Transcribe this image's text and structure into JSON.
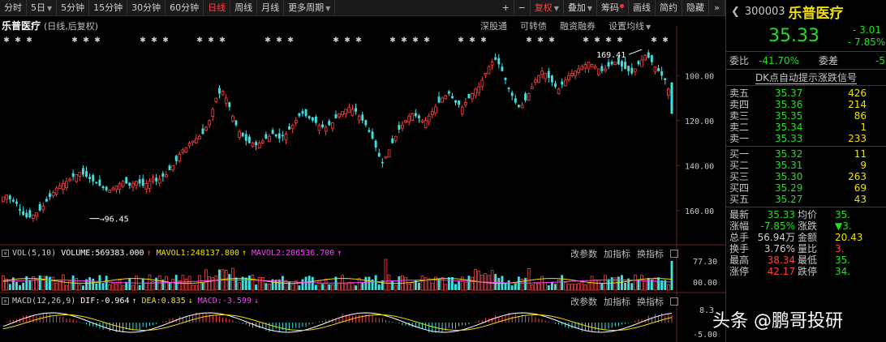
{
  "toolbar": {
    "items": [
      {
        "label": "分时",
        "active": false
      },
      {
        "label": "5日",
        "active": false,
        "dropdown": true
      },
      {
        "label": "5分钟",
        "active": false
      },
      {
        "label": "15分钟",
        "active": false
      },
      {
        "label": "30分钟",
        "active": false
      },
      {
        "label": "60分钟",
        "active": false
      },
      {
        "label": "日线",
        "active": true
      },
      {
        "label": "周线",
        "active": false
      },
      {
        "label": "月线",
        "active": false
      },
      {
        "label": "更多周期",
        "active": false,
        "dropdown": true
      }
    ],
    "plus": "+",
    "minus": "−",
    "fuquan": "复权",
    "overlay": "叠加",
    "chouma": "筹码",
    "draw": "画线",
    "simple": "简约",
    "hide": "隐藏",
    "nav": "»"
  },
  "stock": {
    "name": "乐普医疗",
    "mode": "(日线,后复权)",
    "code": "300003"
  },
  "chart_menu": [
    "深股通",
    "可转债",
    "融资融券",
    "设置均线"
  ],
  "y_axis_labels": [
    "160.00",
    "140.00",
    "120.00",
    "100.00"
  ],
  "annotations": {
    "high": "169.41",
    "low": "96.45"
  },
  "star_marks": "✱",
  "volume_panel": {
    "name": "VOL(5,10)",
    "volume": "VOLUME:569383.000",
    "mavol1": "MAVOL1:248137.800",
    "mavol2": "MAVOL2:206536.700",
    "buttons": [
      "改参数",
      "加指标",
      "换指标"
    ],
    "axis": [
      "77.30",
      "00.00"
    ]
  },
  "macd_panel": {
    "name": "MACD(12,26,9)",
    "dif": "DIF:-0.964",
    "dea": "DEA:0.835",
    "macd": "MACD:-3.599",
    "buttons": [
      "改参数",
      "加指标",
      "换指标"
    ],
    "axis": [
      "8.3",
      "-5.00"
    ]
  },
  "quote": {
    "price": "35.33",
    "change": "- 3.01",
    "pct": "- 7.85%",
    "weibi_label": "委比",
    "weibi": "-41.70%",
    "weicha_label": "委差",
    "weicha": "-5",
    "dk": "DK点自动提示涨跌信号",
    "sells": [
      {
        "label": "卖五",
        "price": "35.37",
        "vol": "426"
      },
      {
        "label": "卖四",
        "price": "35.36",
        "vol": "214"
      },
      {
        "label": "卖三",
        "price": "35.35",
        "vol": "86"
      },
      {
        "label": "卖二",
        "price": "35.34",
        "vol": "1"
      },
      {
        "label": "卖一",
        "price": "35.33",
        "vol": "233"
      }
    ],
    "buys": [
      {
        "label": "买一",
        "price": "35.32",
        "vol": "11"
      },
      {
        "label": "买二",
        "price": "35.31",
        "vol": "9"
      },
      {
        "label": "买三",
        "price": "35.30",
        "vol": "263"
      },
      {
        "label": "买四",
        "price": "35.29",
        "vol": "69"
      },
      {
        "label": "买五",
        "price": "35.27",
        "vol": "43"
      }
    ],
    "stats": [
      {
        "l1": "最新",
        "v1": "35.33",
        "c1": "g",
        "l2": "均价",
        "v2": "35.",
        "c2": "g"
      },
      {
        "l1": "涨幅",
        "v1": "-7.85%",
        "c1": "g",
        "l2": "涨跌",
        "v2": "▼3.",
        "c2": "g"
      },
      {
        "l1": "总手",
        "v1": "56.94万",
        "c1": "w",
        "l2": "金额",
        "v2": "20.43",
        "c2": "y"
      },
      {
        "l1": "换手",
        "v1": "3.76%",
        "c1": "w",
        "l2": "量比",
        "v2": "3.",
        "c2": "r"
      },
      {
        "l1": "最高",
        "v1": "38.34",
        "c1": "r",
        "l2": "最低",
        "v2": "35.",
        "c2": "g"
      },
      {
        "l1": "涨停",
        "v1": "42.17",
        "c1": "r",
        "l2": "跌停",
        "v2": "34.",
        "c2": "g"
      }
    ]
  },
  "watermark": "头条 @鹏哥投研",
  "chart_data": {
    "type": "candlestick",
    "y_ticks": [
      100,
      120,
      140,
      160
    ],
    "ylim": [
      92,
      172
    ],
    "notable": {
      "high": 169.41,
      "low": 96.45
    },
    "close_path": [
      106,
      107,
      105,
      104,
      103,
      100,
      98,
      97,
      97,
      98,
      99,
      100,
      102,
      104,
      106,
      108,
      110,
      111,
      112,
      113,
      114,
      115,
      116,
      117,
      116,
      115,
      114,
      113,
      112,
      111,
      110,
      109,
      109,
      110,
      111,
      112,
      113,
      112,
      111,
      112,
      113,
      112,
      111,
      112,
      113,
      114,
      113,
      114,
      115,
      116,
      118,
      120,
      122,
      125,
      127,
      128,
      130,
      131,
      132,
      133,
      134,
      137,
      140,
      145,
      150,
      152,
      153,
      150,
      146,
      142,
      138,
      135,
      133,
      131,
      130,
      130,
      129,
      130,
      131,
      132,
      133,
      134,
      133,
      132,
      133,
      134,
      136,
      138,
      140,
      142,
      143,
      142,
      141,
      140,
      139,
      138,
      137,
      137,
      138,
      139,
      141,
      143,
      144,
      145,
      146,
      145,
      144,
      142,
      140,
      138,
      135,
      132,
      128,
      124,
      121,
      124,
      127,
      130,
      133,
      136,
      138,
      140,
      142,
      143,
      142,
      141,
      140,
      140,
      142,
      144,
      146,
      148,
      150,
      151,
      152,
      150,
      148,
      147,
      146,
      148,
      150,
      152,
      154,
      155,
      158,
      161,
      164,
      166,
      167,
      165,
      162,
      158,
      154,
      151,
      148,
      146,
      147,
      149,
      152,
      155,
      158,
      160,
      162,
      161,
      159,
      157,
      155,
      154,
      156,
      158,
      160,
      161,
      162,
      163,
      164,
      165,
      166,
      165,
      164,
      163,
      162,
      163,
      164,
      165,
      166,
      165,
      164,
      163,
      162,
      161,
      163,
      165,
      167,
      169,
      168,
      166,
      164,
      162,
      160,
      158,
      154,
      150
    ]
  }
}
